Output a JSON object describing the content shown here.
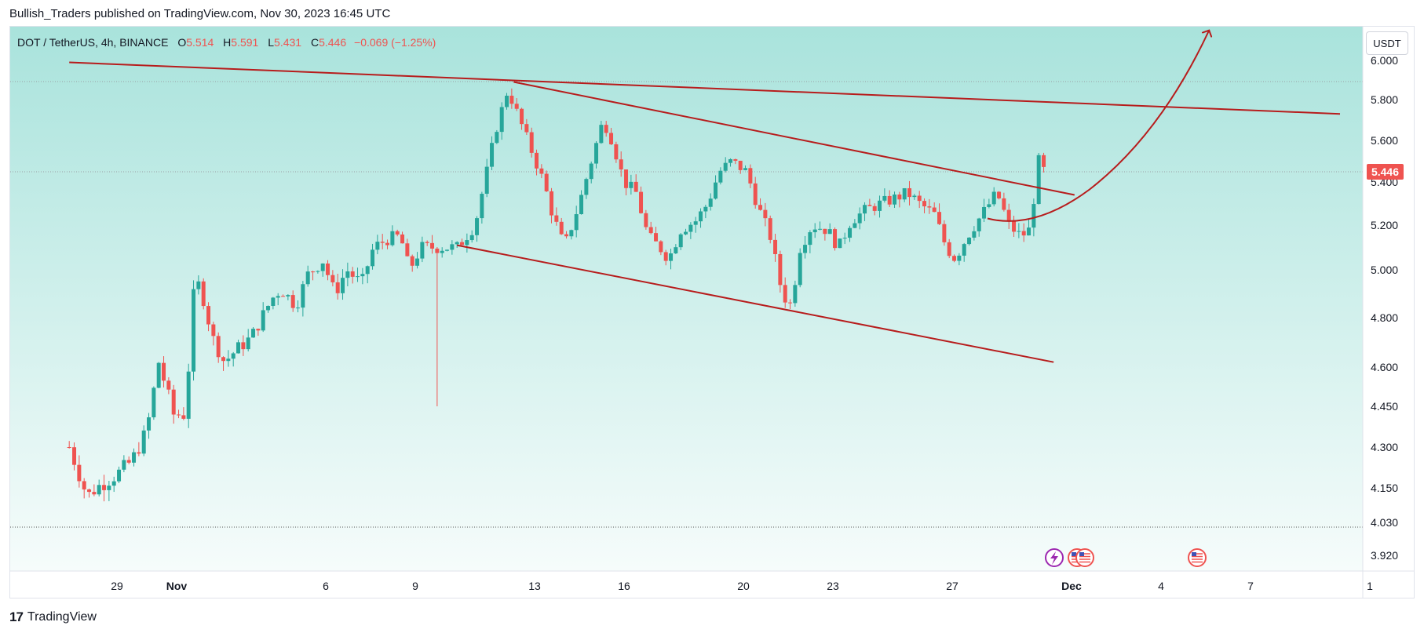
{
  "header": {
    "published_by": "Bullish_Traders published on TradingView.com, Nov 30, 2023 16:45 UTC"
  },
  "legend": {
    "symbol": "DOT / TetherUS, 4h, BINANCE",
    "o_label": "O",
    "o_value": "5.514",
    "h_label": "H",
    "h_value": "5.591",
    "l_label": "L",
    "l_value": "5.431",
    "c_label": "C",
    "c_value": "5.446",
    "change": "−0.069 (−1.25%)"
  },
  "currency_button": "USDT",
  "last_price_tag": "5.446",
  "footer": {
    "brand_mark": "17",
    "brand_name": "TradingView"
  },
  "colors": {
    "up": "#26a69a",
    "down": "#ef5350",
    "trendline": "#b71c1c",
    "bg_top": "#a9e3dc",
    "bg_bottom": "#f6fcfb"
  },
  "chart_data": {
    "type": "candlestick",
    "title": "DOT / TetherUS, 4h, BINANCE",
    "ylim": [
      3.85,
      6.05
    ],
    "y_ticks": [
      "6.000",
      "5.800",
      "5.600",
      "5.400",
      "5.200",
      "5.000",
      "4.800",
      "4.600",
      "4.450",
      "4.300",
      "4.150",
      "4.030",
      "3.920"
    ],
    "x_ticks": [
      {
        "label": "29",
        "day": 1.0
      },
      {
        "label": "Nov",
        "day": 3.0
      },
      {
        "label": "6",
        "day": 8.0
      },
      {
        "label": "9",
        "day": 11.0
      },
      {
        "label": "13",
        "day": 15.0
      },
      {
        "label": "16",
        "day": 18.0
      },
      {
        "label": "20",
        "day": 22.0
      },
      {
        "label": "23",
        "day": 25.0
      },
      {
        "label": "27",
        "day": 29.0
      },
      {
        "label": "Dec",
        "day": 33.0
      },
      {
        "label": "4",
        "day": 36.0
      },
      {
        "label": "7",
        "day": 39.0
      },
      {
        "label": "1",
        "day": 43.0
      }
    ],
    "last_price": 5.446,
    "series_anchors": [
      [
        -0.6,
        4.3
      ],
      [
        0.0,
        4.12
      ],
      [
        0.3,
        4.15
      ],
      [
        1.0,
        4.2
      ],
      [
        1.5,
        4.25
      ],
      [
        2.0,
        4.36
      ],
      [
        2.4,
        4.62
      ],
      [
        2.9,
        4.42
      ],
      [
        3.3,
        4.42
      ],
      [
        3.6,
        4.95
      ],
      [
        3.8,
        4.93
      ],
      [
        4.2,
        4.72
      ],
      [
        4.6,
        4.62
      ],
      [
        5.0,
        4.67
      ],
      [
        5.5,
        4.72
      ],
      [
        6.2,
        4.88
      ],
      [
        6.5,
        4.92
      ],
      [
        7.0,
        4.85
      ],
      [
        7.4,
        4.98
      ],
      [
        7.9,
        5.04
      ],
      [
        8.3,
        4.9
      ],
      [
        8.7,
        5.0
      ],
      [
        9.2,
        4.94
      ],
      [
        9.6,
        5.1
      ],
      [
        10.1,
        5.14
      ],
      [
        10.5,
        5.15
      ],
      [
        10.8,
        5.0
      ],
      [
        11.2,
        5.1
      ],
      [
        11.6,
        5.1
      ],
      [
        12.4,
        5.1
      ],
      [
        13.0,
        5.2
      ],
      [
        13.4,
        5.45
      ],
      [
        13.7,
        5.65
      ],
      [
        14.1,
        5.85
      ],
      [
        14.5,
        5.7
      ],
      [
        14.9,
        5.55
      ],
      [
        15.3,
        5.4
      ],
      [
        15.6,
        5.25
      ],
      [
        16.0,
        5.1
      ],
      [
        16.5,
        5.3
      ],
      [
        17.0,
        5.55
      ],
      [
        17.3,
        5.7
      ],
      [
        17.6,
        5.6
      ],
      [
        18.0,
        5.4
      ],
      [
        18.4,
        5.35
      ],
      [
        18.8,
        5.15
      ],
      [
        19.2,
        5.1
      ],
      [
        19.5,
        5.05
      ],
      [
        19.9,
        5.18
      ],
      [
        20.4,
        5.22
      ],
      [
        20.8,
        5.3
      ],
      [
        21.2,
        5.45
      ],
      [
        21.6,
        5.5
      ],
      [
        22.1,
        5.45
      ],
      [
        22.5,
        5.28
      ],
      [
        22.9,
        5.15
      ],
      [
        23.3,
        4.9
      ],
      [
        23.6,
        4.85
      ],
      [
        23.9,
        5.1
      ],
      [
        24.3,
        5.2
      ],
      [
        24.8,
        5.18
      ],
      [
        25.2,
        5.1
      ],
      [
        25.6,
        5.22
      ],
      [
        26.1,
        5.27
      ],
      [
        26.6,
        5.3
      ],
      [
        27.0,
        5.32
      ],
      [
        27.5,
        5.35
      ],
      [
        27.9,
        5.3
      ],
      [
        28.4,
        5.25
      ],
      [
        28.8,
        5.1
      ],
      [
        29.1,
        5.05
      ],
      [
        29.5,
        5.15
      ],
      [
        30.0,
        5.25
      ],
      [
        30.5,
        5.35
      ],
      [
        30.9,
        5.2
      ],
      [
        31.3,
        5.15
      ],
      [
        31.6,
        5.18
      ],
      [
        31.9,
        5.5
      ],
      [
        32.1,
        5.446
      ]
    ],
    "candles_generated": "Tracing OHLC candles (green up / red down) along the anchor path, with a long lower wick reaching 4.450 near day 11.8",
    "annotations": [
      {
        "type": "trendline",
        "from": [
          -0.6,
          5.99
        ],
        "to": [
          42.0,
          5.73
        ]
      },
      {
        "type": "trendline",
        "from": [
          14.3,
          5.89
        ],
        "to": [
          33.1,
          5.34
        ]
      },
      {
        "type": "trendline",
        "from": [
          12.4,
          5.11
        ],
        "to": [
          32.4,
          4.62
        ]
      },
      {
        "type": "projection_arrow",
        "from": [
          31.5,
          5.22
        ],
        "to": [
          37.6,
          6.15
        ]
      }
    ]
  }
}
